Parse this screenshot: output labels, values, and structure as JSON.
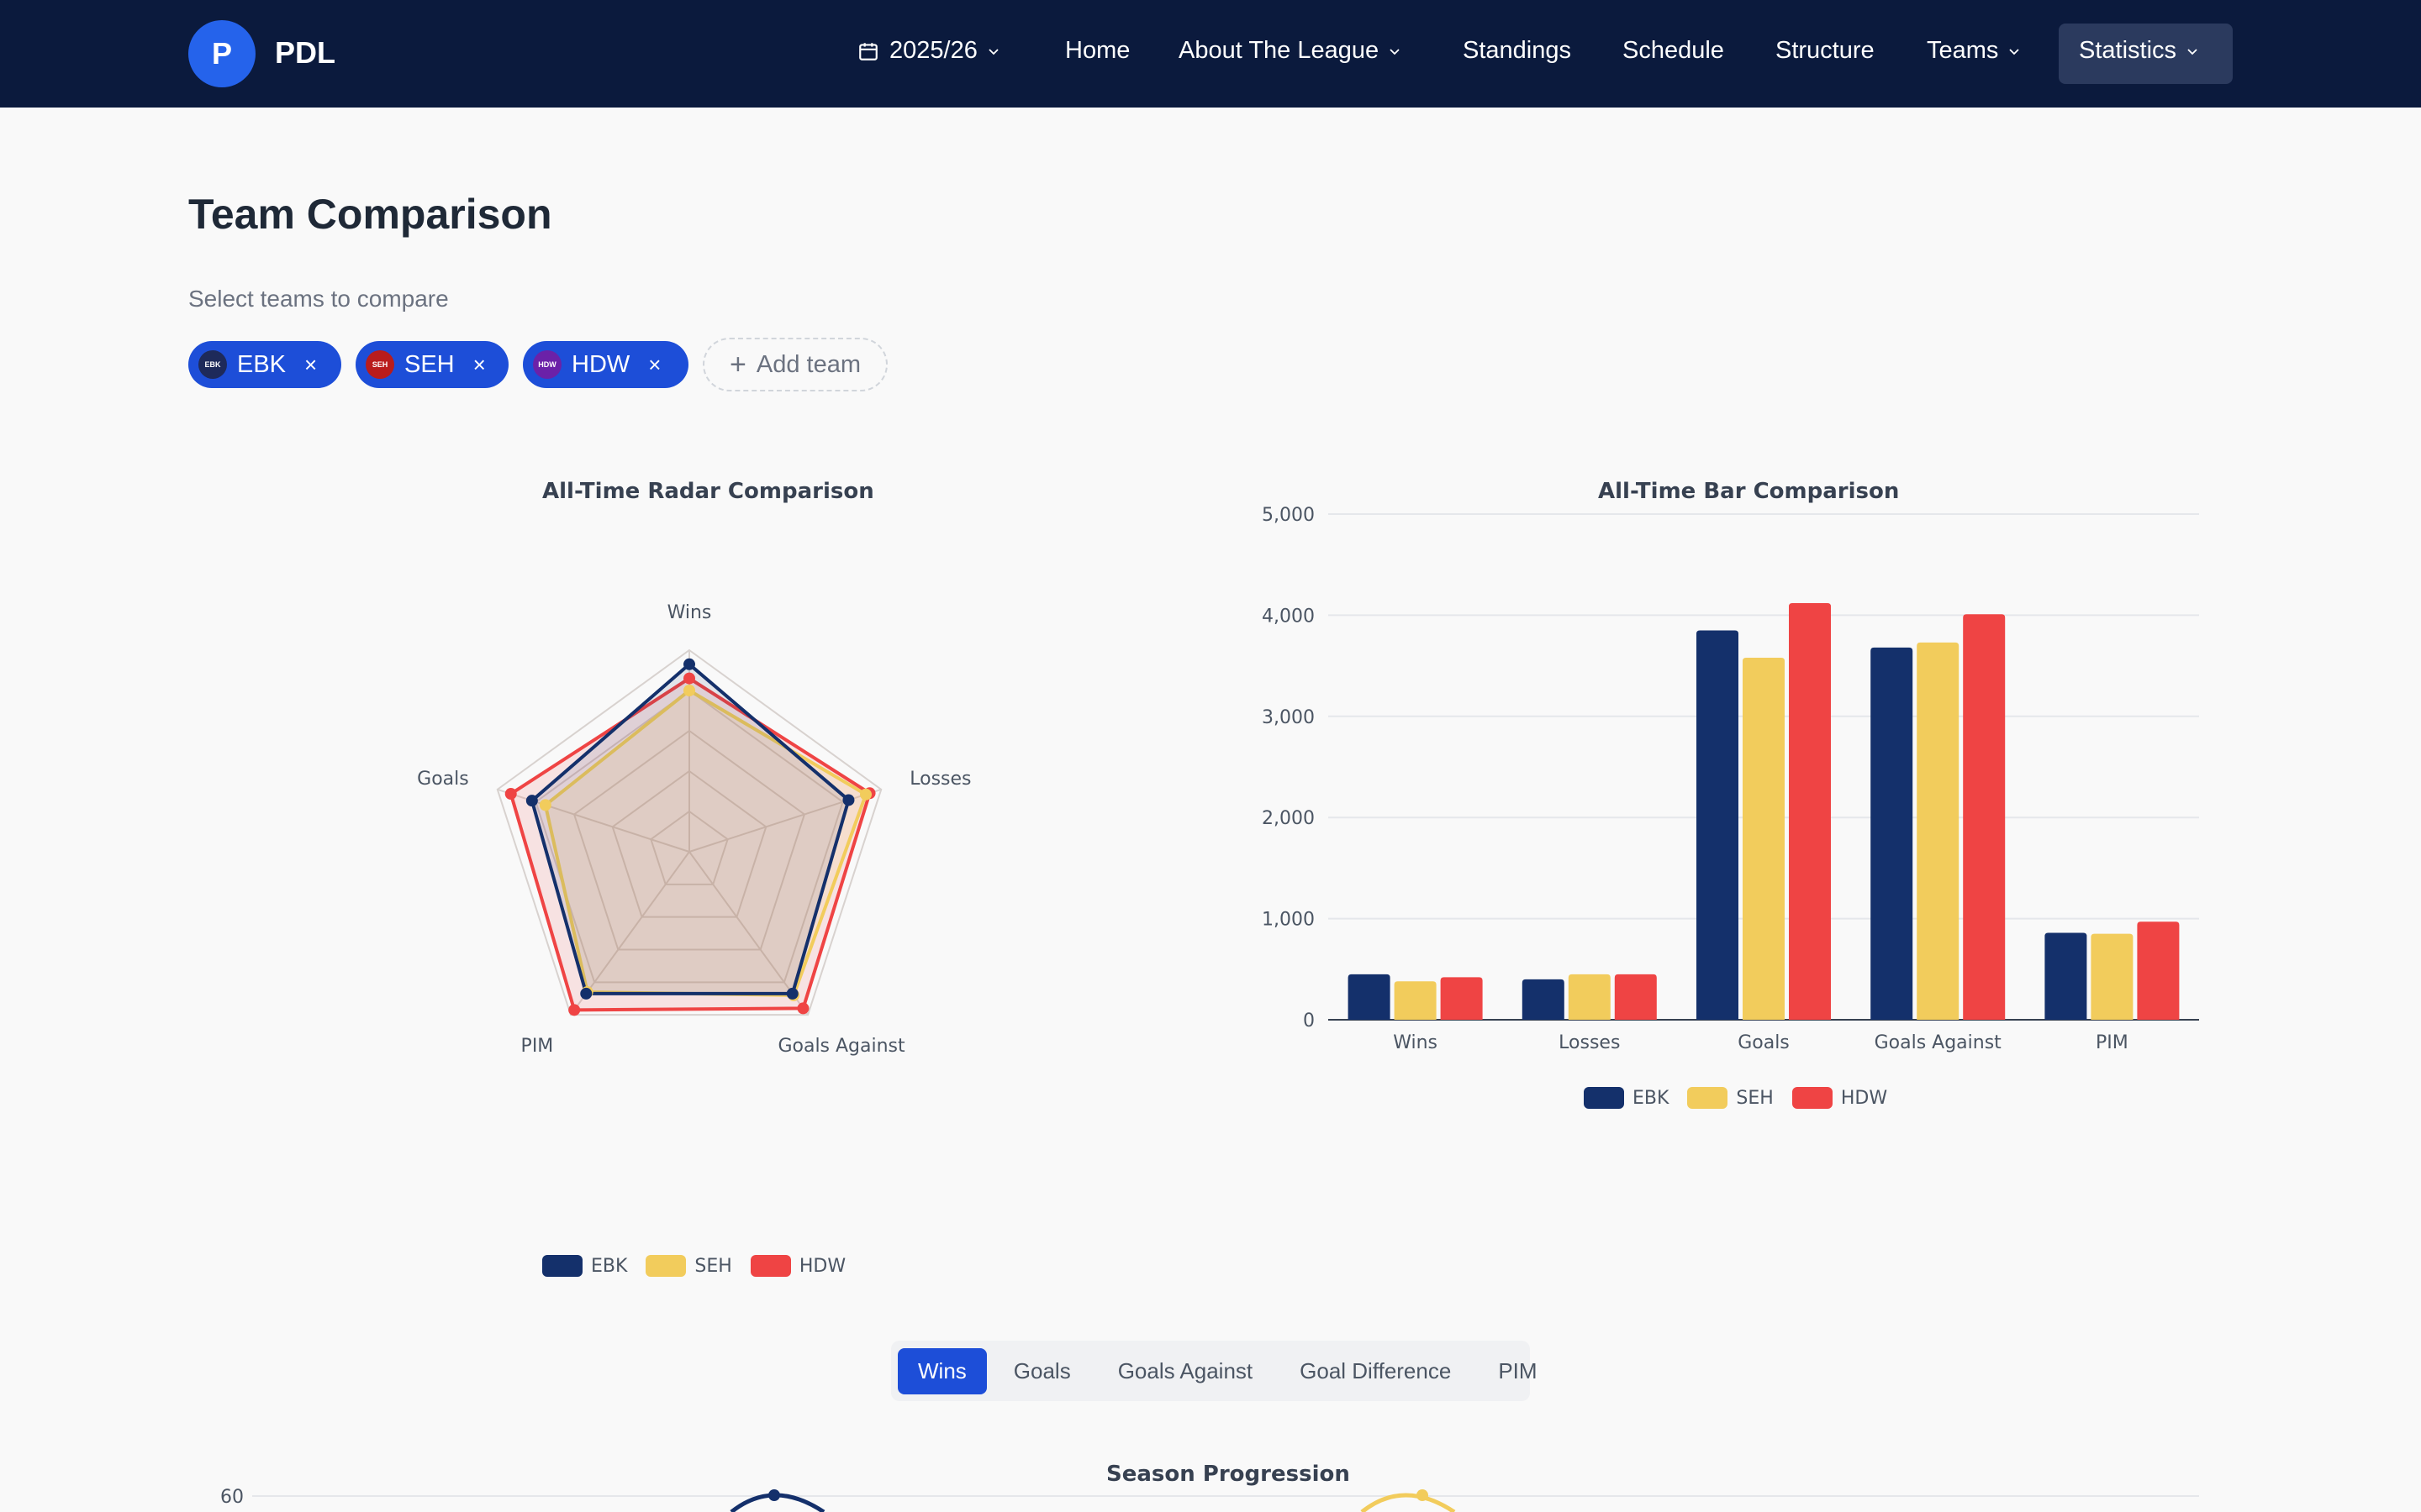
{
  "header": {
    "logo_letter": "P",
    "app_name": "PDL",
    "season": "2025/26",
    "nav": {
      "home": "Home",
      "about": "About The League",
      "standings": "Standings",
      "schedule": "Schedule",
      "structure": "Structure",
      "teams": "Teams",
      "statistics": "Statistics"
    }
  },
  "page": {
    "title": "Team Comparison",
    "select_label": "Select teams to compare",
    "add_team_label": "Add team",
    "teams": [
      {
        "code": "EBK",
        "badge": "EBK",
        "badge_color": "#1e2a5a"
      },
      {
        "code": "SEH",
        "badge": "SEH",
        "badge_color": "#b91c1c"
      },
      {
        "code": "HDW",
        "badge": "HDW",
        "badge_color": "#6b21a8"
      }
    ],
    "remove_glyph": "×",
    "add_glyph": "+"
  },
  "colors": {
    "EBK": "#14306b",
    "SEH": "#f2cc5c",
    "HDW": "#ef4444",
    "accent": "#1d4ed8",
    "nav_bg": "#0b1a3d"
  },
  "chart_data": [
    {
      "type": "radar",
      "title": "All-Time Radar Comparison",
      "axes": [
        "Wins",
        "Losses",
        "Goals Against",
        "PIM",
        "Goals"
      ],
      "series": [
        {
          "name": "EBK",
          "values": [
            0.93,
            0.83,
            0.87,
            0.87,
            0.82
          ]
        },
        {
          "name": "SEH",
          "values": [
            0.8,
            0.92,
            0.88,
            0.86,
            0.75
          ]
        },
        {
          "name": "HDW",
          "values": [
            0.86,
            0.94,
            0.96,
            0.97,
            0.93
          ]
        }
      ],
      "legend": [
        "EBK",
        "SEH",
        "HDW"
      ],
      "legend_position": "bottom"
    },
    {
      "type": "bar",
      "title": "All-Time Bar Comparison",
      "categories": [
        "Wins",
        "Losses",
        "Goals",
        "Goals Against",
        "PIM"
      ],
      "series": [
        {
          "name": "EBK",
          "values": [
            450,
            400,
            3850,
            3680,
            860
          ]
        },
        {
          "name": "SEH",
          "values": [
            380,
            450,
            3580,
            3730,
            850
          ]
        },
        {
          "name": "HDW",
          "values": [
            420,
            450,
            4120,
            4010,
            970
          ]
        }
      ],
      "y_ticks": [
        "0",
        "1,000",
        "2,000",
        "3,000",
        "4,000",
        "5,000"
      ],
      "ylim": [
        0,
        5000
      ],
      "grid": true,
      "legend_position": "bottom"
    }
  ],
  "progression": {
    "tabs": [
      "Wins",
      "Goals",
      "Goals Against",
      "Goal Difference",
      "PIM"
    ],
    "active_tab": "Wins",
    "title": "Season Progression",
    "first_tick": "60"
  }
}
